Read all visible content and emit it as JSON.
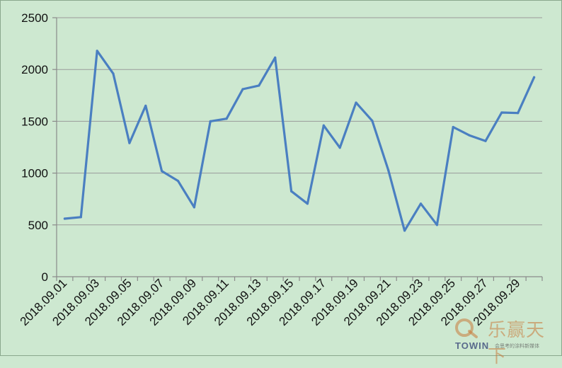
{
  "chart_data": {
    "type": "line",
    "title": "",
    "xlabel": "",
    "ylabel": "",
    "ylim": [
      0,
      2500
    ],
    "yticks": [
      0,
      500,
      1000,
      1500,
      2000,
      2500
    ],
    "grid": true,
    "legend": "none",
    "line_color": "#4a7fc1",
    "x": [
      "2018.09.01",
      "2018.09.02",
      "2018.09.03",
      "2018.09.04",
      "2018.09.05",
      "2018.09.06",
      "2018.09.07",
      "2018.09.08",
      "2018.09.09",
      "2018.09.10",
      "2018.09.11",
      "2018.09.12",
      "2018.09.13",
      "2018.09.14",
      "2018.09.15",
      "2018.09.16",
      "2018.09.17",
      "2018.09.18",
      "2018.09.19",
      "2018.09.20",
      "2018.09.21",
      "2018.09.22",
      "2018.09.23",
      "2018.09.24",
      "2018.09.25",
      "2018.09.26",
      "2018.09.27",
      "2018.09.28",
      "2018.09.29",
      "2018.09.30"
    ],
    "x_tick_labels": [
      "2018.09.01",
      "2018.09.03",
      "2018.09.05",
      "2018.09.07",
      "2018.09.09",
      "2018.09.11",
      "2018.09.13",
      "2018.09.15",
      "2018.09.17",
      "2018.09.19",
      "2018.09.21",
      "2018.09.23",
      "2018.09.25",
      "2018.09.27",
      "2018.09.29"
    ],
    "series": [
      {
        "values": [
          560,
          575,
          2180,
          1960,
          1290,
          1650,
          1020,
          925,
          670,
          1500,
          1525,
          1810,
          1845,
          2115,
          825,
          705,
          1460,
          1245,
          1680,
          1505,
          1025,
          445,
          705,
          500,
          1445,
          1365,
          1310,
          1585,
          1580,
          1925
        ]
      }
    ]
  },
  "watermark": {
    "logo_text": "乐赢天下",
    "brand": "TOWIN",
    "tagline": "会思考的涂料新媒体"
  }
}
